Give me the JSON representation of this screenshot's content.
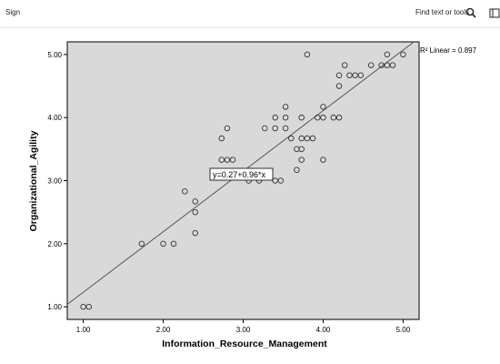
{
  "toolbar": {
    "sign_label": "Sign",
    "find_label": "Find text or tools",
    "search_icon": "search-icon",
    "panel_icon": "panel-icon"
  },
  "chart_data": {
    "type": "scatter",
    "title": "",
    "xlabel": "Information_Resource_Management",
    "ylabel": "Organizational_Agility",
    "xlim": [
      0.8,
      5.2
    ],
    "ylim": [
      0.8,
      5.2
    ],
    "xticks": [
      "1.00",
      "2.00",
      "3.00",
      "4.00",
      "5.00"
    ],
    "yticks": [
      "1.00",
      "2.00",
      "3.00",
      "4.00",
      "5.00"
    ],
    "plot_background": "#d9d9d9",
    "fit_line": {
      "intercept": 0.27,
      "slope": 0.96,
      "equation_label": "y=0.27+0.96*x"
    },
    "r2_label": "R² Linear = 0.897",
    "points": [
      [
        1.0,
        1.0
      ],
      [
        1.07,
        1.0
      ],
      [
        1.73,
        2.0
      ],
      [
        2.0,
        2.0
      ],
      [
        2.13,
        2.0
      ],
      [
        2.27,
        2.83
      ],
      [
        2.4,
        2.67
      ],
      [
        2.4,
        2.5
      ],
      [
        2.4,
        2.17
      ],
      [
        2.73,
        3.67
      ],
      [
        2.73,
        3.33
      ],
      [
        2.8,
        3.83
      ],
      [
        2.8,
        3.33
      ],
      [
        2.87,
        3.33
      ],
      [
        3.07,
        3.0
      ],
      [
        3.2,
        3.0
      ],
      [
        3.27,
        3.83
      ],
      [
        3.4,
        4.0
      ],
      [
        3.4,
        3.83
      ],
      [
        3.4,
        3.0
      ],
      [
        3.47,
        3.0
      ],
      [
        3.53,
        4.17
      ],
      [
        3.53,
        4.0
      ],
      [
        3.53,
        3.83
      ],
      [
        3.6,
        3.67
      ],
      [
        3.67,
        3.5
      ],
      [
        3.67,
        3.17
      ],
      [
        3.73,
        4.0
      ],
      [
        3.73,
        3.67
      ],
      [
        3.73,
        3.5
      ],
      [
        3.73,
        3.33
      ],
      [
        3.8,
        5.0
      ],
      [
        3.8,
        3.67
      ],
      [
        3.87,
        3.67
      ],
      [
        3.93,
        4.0
      ],
      [
        4.0,
        4.17
      ],
      [
        4.0,
        4.0
      ],
      [
        4.0,
        3.33
      ],
      [
        4.13,
        4.0
      ],
      [
        4.2,
        4.67
      ],
      [
        4.2,
        4.5
      ],
      [
        4.2,
        4.0
      ],
      [
        4.27,
        4.83
      ],
      [
        4.33,
        4.67
      ],
      [
        4.4,
        4.67
      ],
      [
        4.47,
        4.67
      ],
      [
        4.6,
        4.83
      ],
      [
        4.73,
        4.83
      ],
      [
        4.8,
        5.0
      ],
      [
        4.8,
        4.83
      ],
      [
        4.87,
        4.83
      ],
      [
        5.0,
        5.0
      ]
    ]
  }
}
